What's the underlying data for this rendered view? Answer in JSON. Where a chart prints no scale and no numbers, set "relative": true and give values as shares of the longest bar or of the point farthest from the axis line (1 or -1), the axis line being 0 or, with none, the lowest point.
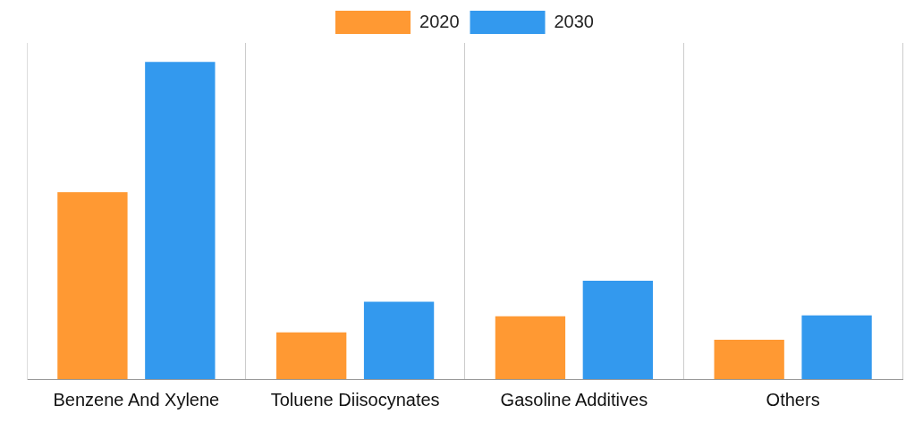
{
  "chart_data": {
    "type": "bar",
    "relative": true,
    "categories": [
      "Benzene And Xylene",
      "Toluene Diisocynates",
      "Gasoline Additives",
      "Others"
    ],
    "series": [
      {
        "name": "2020",
        "color": "#ff9933",
        "values": [
          0.589,
          0.147,
          0.198,
          0.124
        ]
      },
      {
        "name": "2030",
        "color": "#3399ee",
        "values": [
          1,
          0.244,
          0.31,
          0.201
        ]
      }
    ],
    "legend": "top",
    "grid": "x"
  }
}
